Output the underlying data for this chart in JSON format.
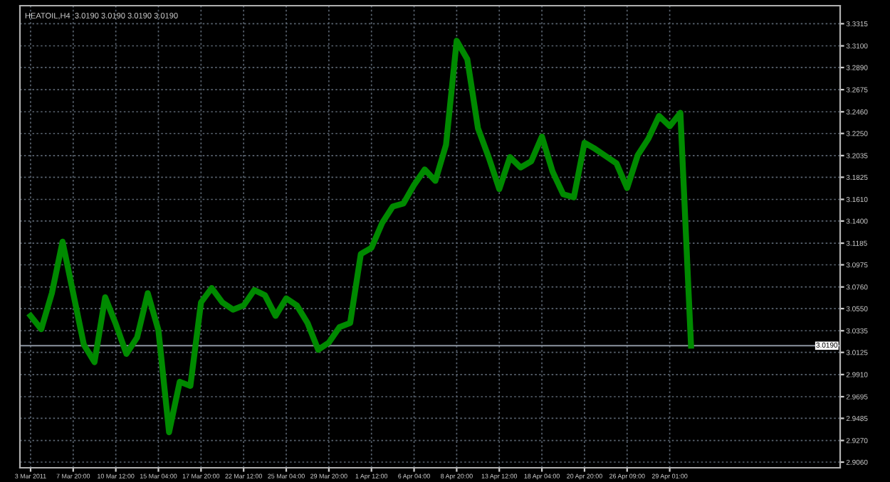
{
  "chart_data": {
    "type": "line",
    "title": "HEATOIL,H4  3.0190 3.0190 3.0190 3.0190",
    "categories": [
      "3 Mar 2011",
      null,
      null,
      null,
      "7 Mar 20:00",
      null,
      null,
      null,
      "10 Mar 12:00",
      null,
      null,
      null,
      "15 Mar 04:00",
      null,
      null,
      null,
      "17 Mar 20:00",
      null,
      null,
      null,
      "22 Mar 12:00",
      null,
      null,
      null,
      "25 Mar 04:00",
      null,
      null,
      null,
      "29 Mar 20:00",
      null,
      null,
      null,
      "1 Apr 12:00",
      null,
      null,
      null,
      "6 Apr 04:00",
      null,
      null,
      null,
      "8 Apr 20:00",
      null,
      null,
      null,
      "13 Apr 12:00",
      null,
      null,
      null,
      "18 Apr 04:00",
      null,
      null,
      null,
      "20 Apr 20:00",
      null,
      null,
      null,
      "26 Apr 09:00",
      null,
      null,
      null,
      "29 Apr 01:00",
      null,
      null,
      null,
      null,
      null,
      null,
      null,
      null,
      null,
      null,
      null,
      null,
      null,
      null,
      null
    ],
    "series": [
      {
        "color": "#008a00",
        "values": [
          3.048,
          3.035,
          3.07,
          3.12,
          3.07,
          3.02,
          3.003,
          3.066,
          3.04,
          3.011,
          3.027,
          3.07,
          3.034,
          2.935,
          2.984,
          2.98,
          3.061,
          3.075,
          3.061,
          3.054,
          3.058,
          3.073,
          3.068,
          3.048,
          3.065,
          3.058,
          3.041,
          3.015,
          3.022,
          3.037,
          3.041,
          3.108,
          3.114,
          3.138,
          3.154,
          3.157,
          3.175,
          3.19,
          3.179,
          3.214,
          3.315,
          3.297,
          3.23,
          3.202,
          3.171,
          3.202,
          3.192,
          3.198,
          3.222,
          3.188,
          3.166,
          3.163,
          3.216,
          3.21,
          3.203,
          3.196,
          3.172,
          3.204,
          3.22,
          3.242,
          3.232,
          3.245,
          3.019,
          null,
          null,
          null,
          null,
          null,
          null,
          null,
          null,
          null,
          null,
          null,
          null,
          null
        ]
      }
    ],
    "ylim": [
      2.9005,
      3.349
    ],
    "yticks": [
      {
        "value": 2.906,
        "label": "2.9060"
      },
      {
        "value": 2.927,
        "label": "2.9270"
      },
      {
        "value": 2.9485,
        "label": "2.9485"
      },
      {
        "value": 2.9695,
        "label": "2.9695"
      },
      {
        "value": 2.991,
        "label": "2.9910"
      },
      {
        "value": 3.0125,
        "label": "3.0125"
      },
      {
        "value": 3.0335,
        "label": "3.0335"
      },
      {
        "value": 3.055,
        "label": "3.0550"
      },
      {
        "value": 3.076,
        "label": "3.0760"
      },
      {
        "value": 3.0975,
        "label": "3.0975"
      },
      {
        "value": 3.1185,
        "label": "3.1185"
      },
      {
        "value": 3.14,
        "label": "3.1400"
      },
      {
        "value": 3.161,
        "label": "3.1610"
      },
      {
        "value": 3.1825,
        "label": "3.1825"
      },
      {
        "value": 3.2035,
        "label": "3.2035"
      },
      {
        "value": 3.225,
        "label": "3.2250"
      },
      {
        "value": 3.246,
        "label": "3.2460"
      },
      {
        "value": 3.2675,
        "label": "3.2675"
      },
      {
        "value": 3.289,
        "label": "3.2890"
      },
      {
        "value": 3.31,
        "label": "3.3100"
      },
      {
        "value": 3.3315,
        "label": "3.3315"
      }
    ],
    "ref_lines": [
      {
        "axis": "y",
        "value": 3.019,
        "label": "3.0190",
        "color": "#8c95a0"
      }
    ],
    "grid": true,
    "line_style": "solid"
  }
}
